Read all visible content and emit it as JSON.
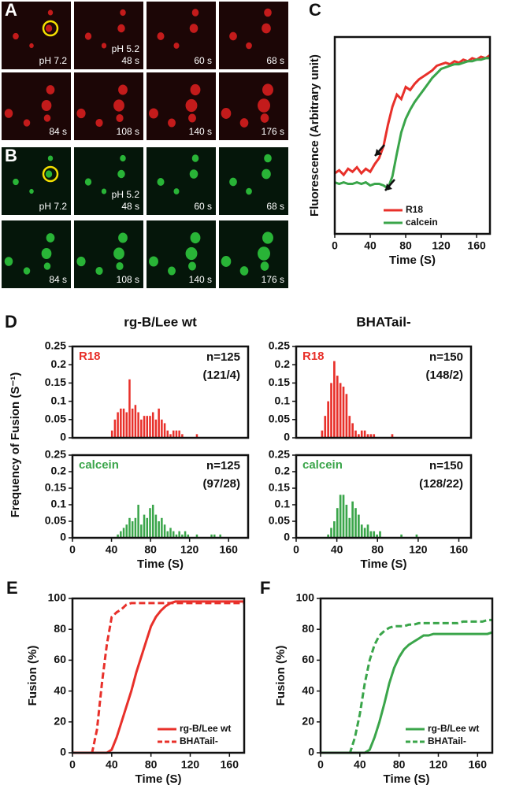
{
  "image_panels": [
    {
      "label": "A",
      "color": "#e02020",
      "frames": [
        [
          "pH 7.2"
        ],
        [
          "pH 5.2",
          "48 s"
        ],
        [
          "60 s"
        ],
        [
          "68 s"
        ],
        [
          "84 s"
        ],
        [
          "108 s"
        ],
        [
          "140 s"
        ],
        [
          "176 s"
        ]
      ]
    },
    {
      "label": "B",
      "color": "#30d040",
      "frames": [
        [
          "pH 7.2"
        ],
        [
          "pH 5.2",
          "48 s"
        ],
        [
          "60 s"
        ],
        [
          "68 s"
        ],
        [
          "84 s"
        ],
        [
          "108 s"
        ],
        [
          "140 s"
        ],
        [
          "176 s"
        ]
      ]
    }
  ],
  "chart_data": [
    {
      "type": "line",
      "panel": "C",
      "xlabel": "Time (S)",
      "ylabel": "Fluorescence (Arbitrary unit)",
      "x": [
        0,
        5,
        10,
        15,
        20,
        25,
        30,
        35,
        40,
        45,
        50,
        55,
        60,
        65,
        70,
        75,
        80,
        85,
        90,
        95,
        100,
        105,
        110,
        115,
        120,
        125,
        130,
        135,
        140,
        145,
        150,
        155,
        160,
        165,
        170,
        175
      ],
      "series": [
        {
          "name": "R18",
          "color": "#e8302a",
          "linestyle": "solid",
          "values": [
            20,
            22,
            19,
            23,
            21,
            24,
            20,
            23,
            21,
            26,
            30,
            38,
            52,
            64,
            72,
            69,
            77,
            75,
            79,
            82,
            84,
            86,
            88,
            91,
            92,
            93,
            92,
            94,
            93,
            95,
            94,
            96,
            95,
            97,
            96,
            98
          ]
        },
        {
          "name": "calcein",
          "color": "#3aa54a",
          "linestyle": "solid",
          "values": [
            14,
            13,
            14,
            13,
            13,
            14,
            13,
            14,
            12,
            13,
            13,
            12,
            10,
            18,
            33,
            47,
            56,
            62,
            67,
            71,
            75,
            79,
            83,
            86,
            89,
            90,
            91,
            92,
            92,
            93,
            94,
            94,
            95,
            95,
            96,
            96
          ]
        }
      ],
      "xlim": [
        0,
        175
      ],
      "ylim": [
        -20,
        110
      ],
      "xticks": [
        0,
        40,
        80,
        120,
        160
      ],
      "legend": "lower right"
    },
    {
      "type": "histogram",
      "panel": "D",
      "column_title": "rg-B/Lee wt",
      "ylabel": "Frequency of Fusion (S⁻¹)",
      "label": "R18",
      "color": "#e8302a",
      "annotations": [
        "n=125",
        "(121/4)"
      ],
      "bins": [
        39,
        42,
        45,
        48,
        51,
        54,
        57,
        60,
        63,
        66,
        69,
        72,
        75,
        78,
        81,
        84,
        87,
        90,
        93,
        96,
        99,
        102,
        105,
        108,
        111,
        114,
        117,
        120,
        123,
        126,
        129
      ],
      "values": [
        0.02,
        0.05,
        0.07,
        0.08,
        0.08,
        0.07,
        0.16,
        0.08,
        0.09,
        0.07,
        0.05,
        0.06,
        0.06,
        0.06,
        0.07,
        0.05,
        0.08,
        0.05,
        0.04,
        0.02,
        0.01,
        0.02,
        0.02,
        0.02,
        0.01,
        0,
        0,
        0,
        0,
        0.01
      ],
      "xlim": [
        0,
        180
      ],
      "ylim": [
        0,
        0.25
      ],
      "yticks": [
        0,
        0.05,
        0.1,
        0.15,
        0.2,
        0.25
      ]
    },
    {
      "type": "histogram",
      "column_title": "BHATail-",
      "label": "R18",
      "color": "#e8302a",
      "annotations": [
        "n=150",
        "(148/2)"
      ],
      "bins": [
        24,
        27,
        30,
        33,
        36,
        39,
        42,
        45,
        48,
        51,
        54,
        57,
        60,
        63,
        66,
        69,
        72,
        75,
        78,
        81,
        84,
        87,
        90,
        93,
        96
      ],
      "values": [
        0.02,
        0.06,
        0.1,
        0.15,
        0.21,
        0.17,
        0.15,
        0.14,
        0.12,
        0.06,
        0.04,
        0.02,
        0.01,
        0.02,
        0.02,
        0.01,
        0.01,
        0.01,
        0,
        0,
        0,
        0,
        0,
        0.01
      ],
      "xlim": [
        0,
        172
      ],
      "ylim": [
        0,
        0.25
      ],
      "yticks": [
        0,
        0.05,
        0.1,
        0.15,
        0.2,
        0.25
      ]
    },
    {
      "type": "histogram",
      "xlabel": "Time (S)",
      "label": "calcein",
      "color": "#3aa54a",
      "annotations": [
        "n=125",
        "(97/28)"
      ],
      "bins": [
        45,
        48,
        51,
        54,
        57,
        60,
        63,
        66,
        69,
        72,
        75,
        78,
        81,
        84,
        87,
        90,
        93,
        96,
        99,
        102,
        105,
        108,
        111,
        114,
        117,
        120,
        123,
        126,
        129,
        132,
        135,
        138,
        141,
        144,
        147,
        150,
        153
      ],
      "values": [
        0.01,
        0.02,
        0.03,
        0.04,
        0.06,
        0.05,
        0.06,
        0.1,
        0.04,
        0.07,
        0.06,
        0.09,
        0.1,
        0.07,
        0.05,
        0.06,
        0.04,
        0.02,
        0.03,
        0.02,
        0.01,
        0.02,
        0.01,
        0.02,
        0.01,
        0,
        0,
        0.01,
        0,
        0,
        0,
        0,
        0.01,
        0.01,
        0,
        0.01
      ],
      "xlim": [
        0,
        180
      ],
      "ylim": [
        0,
        0.25
      ],
      "yticks": [
        0,
        0.05,
        0.1,
        0.15,
        0.2,
        0.25
      ],
      "xticks": [
        0,
        40,
        80,
        120,
        160
      ]
    },
    {
      "type": "histogram",
      "xlabel": "Time (S)",
      "label": "calcein",
      "color": "#3aa54a",
      "annotations": [
        "n=150",
        "(128/22)"
      ],
      "bins": [
        30,
        33,
        36,
        39,
        42,
        45,
        48,
        51,
        54,
        57,
        60,
        63,
        66,
        69,
        72,
        75,
        78,
        81,
        84,
        87,
        90,
        93,
        96,
        99,
        102,
        105,
        108,
        111,
        114,
        117,
        120
      ],
      "values": [
        0.01,
        0.03,
        0.05,
        0.09,
        0.13,
        0.13,
        0.1,
        0.06,
        0.11,
        0.09,
        0.07,
        0.04,
        0.03,
        0.04,
        0.02,
        0.02,
        0.01,
        0.02,
        0,
        0,
        0,
        0,
        0,
        0,
        0.01,
        0,
        0,
        0,
        0,
        0.01
      ],
      "xlim": [
        0,
        172
      ],
      "ylim": [
        0,
        0.25
      ],
      "yticks": [
        0,
        0.05,
        0.1,
        0.15,
        0.2,
        0.25
      ],
      "xticks": [
        0,
        40,
        80,
        120,
        160
      ]
    },
    {
      "type": "line",
      "panel": "E",
      "xlabel": "Time (S)",
      "ylabel": "Fusion (%)",
      "x": [
        0,
        5,
        10,
        15,
        20,
        25,
        30,
        35,
        40,
        45,
        50,
        55,
        60,
        65,
        70,
        75,
        80,
        85,
        90,
        95,
        100,
        105,
        110,
        115,
        120,
        125,
        130,
        135,
        140,
        145,
        150,
        155,
        160,
        165,
        170,
        175
      ],
      "series": [
        {
          "name": "rg-B/Lee wt",
          "color": "#e8302a",
          "linestyle": "solid",
          "values": [
            0,
            0,
            0,
            0,
            0,
            0,
            0,
            0,
            2,
            10,
            20,
            30,
            40,
            52,
            62,
            72,
            82,
            88,
            92,
            95,
            97,
            98,
            98,
            98,
            98,
            98,
            98,
            98,
            98,
            98,
            98,
            98,
            98,
            98,
            98,
            98
          ]
        },
        {
          "name": "BHATail-",
          "color": "#e8302a",
          "linestyle": "dashed",
          "values": [
            0,
            0,
            0,
            0,
            0,
            15,
            45,
            70,
            88,
            91,
            93,
            96,
            97,
            97,
            97,
            97,
            97,
            97,
            97,
            97,
            97,
            97,
            97,
            97,
            97,
            97,
            97,
            97,
            97,
            97,
            97,
            97,
            97,
            97,
            97,
            97
          ]
        }
      ],
      "xlim": [
        0,
        175
      ],
      "ylim": [
        0,
        100
      ],
      "xticks": [
        0,
        40,
        80,
        120,
        160
      ],
      "yticks": [
        0,
        20,
        40,
        60,
        80,
        100
      ],
      "legend": "lower right"
    },
    {
      "type": "line",
      "panel": "F",
      "xlabel": "Time (S)",
      "ylabel": "Fusion (%)",
      "x": [
        0,
        5,
        10,
        15,
        20,
        25,
        30,
        35,
        40,
        45,
        50,
        55,
        60,
        65,
        70,
        75,
        80,
        85,
        90,
        95,
        100,
        105,
        110,
        115,
        120,
        125,
        130,
        135,
        140,
        145,
        150,
        155,
        160,
        165,
        170,
        175
      ],
      "series": [
        {
          "name": "rg-B/Lee wt",
          "color": "#3aa54a",
          "linestyle": "solid",
          "values": [
            0,
            0,
            0,
            0,
            0,
            0,
            0,
            0,
            0,
            0,
            2,
            10,
            20,
            32,
            45,
            55,
            62,
            67,
            70,
            72,
            74,
            76,
            76,
            77,
            77,
            77,
            77,
            77,
            77,
            77,
            77,
            77,
            77,
            77,
            77,
            78
          ]
        },
        {
          "name": "BHATail-",
          "color": "#3aa54a",
          "linestyle": "dashed",
          "values": [
            0,
            0,
            0,
            0,
            0,
            0,
            0,
            10,
            25,
            45,
            60,
            70,
            76,
            79,
            81,
            82,
            82,
            82,
            83,
            83,
            84,
            84,
            84,
            84,
            84,
            84,
            84,
            84,
            84,
            85,
            85,
            85,
            85,
            85,
            86,
            86
          ]
        }
      ],
      "xlim": [
        0,
        175
      ],
      "ylim": [
        0,
        100
      ],
      "xticks": [
        0,
        40,
        80,
        120,
        160
      ],
      "yticks": [
        0,
        20,
        40,
        60,
        80,
        100
      ],
      "legend": "lower right"
    }
  ]
}
